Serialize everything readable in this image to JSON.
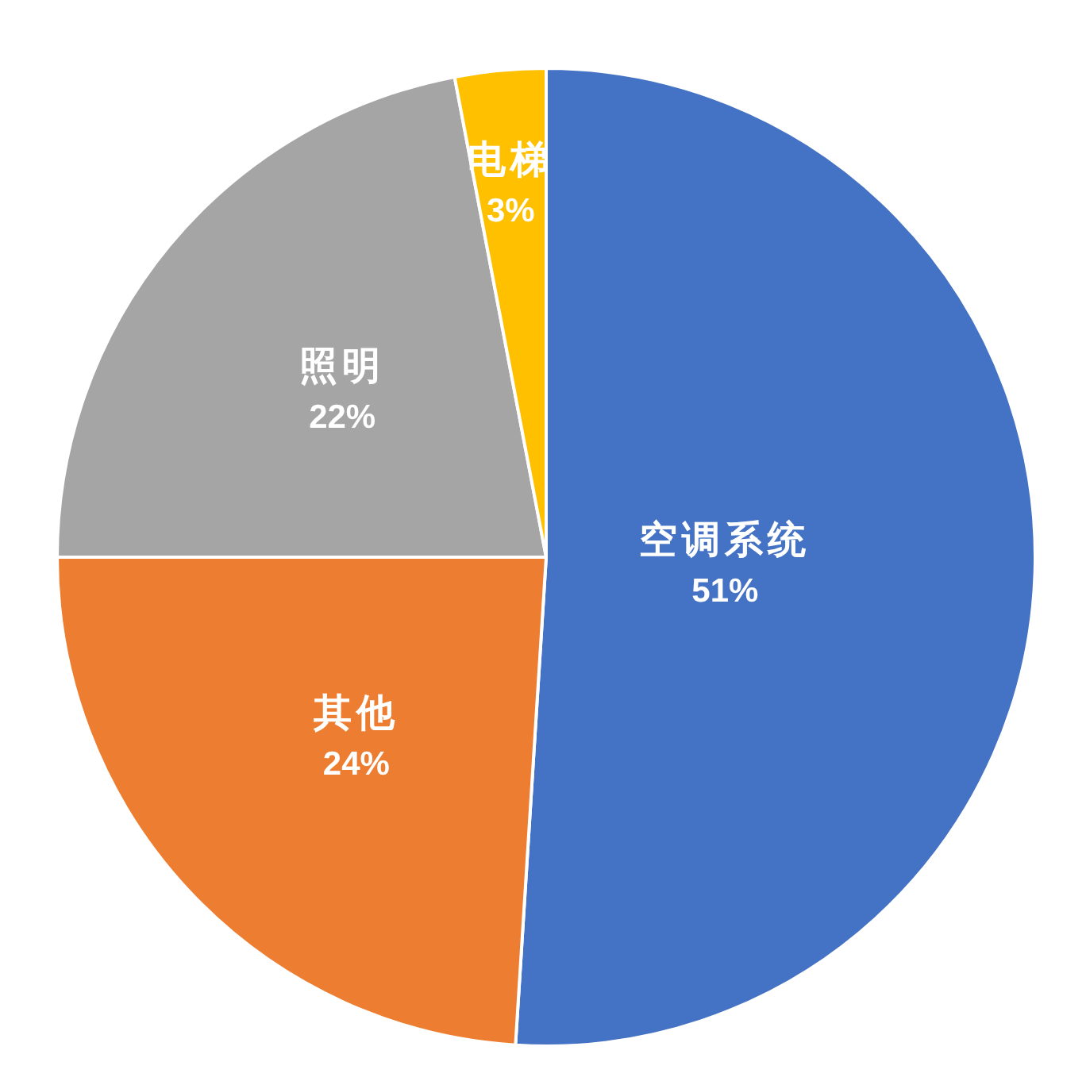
{
  "chart_data": {
    "type": "pie",
    "categories": [
      "空调系统",
      "其他",
      "照明",
      "电梯"
    ],
    "values": [
      51,
      24,
      22,
      3
    ],
    "value_labels": [
      "51%",
      "24%",
      "22%",
      "3%"
    ],
    "colors": [
      "#4472c4",
      "#ed7d31",
      "#a5a5a5",
      "#ffc000"
    ]
  }
}
